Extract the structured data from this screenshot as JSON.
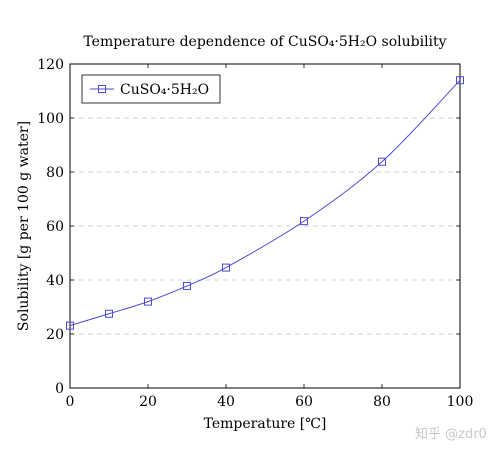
{
  "chart_data": {
    "type": "line",
    "title": "Temperature dependence of CuSO₄·5H₂O solubility",
    "xlabel": "Temperature [℃]",
    "ylabel": "Solubility [g per 100 g water]",
    "xlim": [
      0,
      100
    ],
    "ylim": [
      0,
      120
    ],
    "xticks": [
      0,
      20,
      40,
      60,
      80,
      100
    ],
    "yticks": [
      0,
      20,
      40,
      60,
      80,
      100,
      120
    ],
    "grid": "horizontal-dashed",
    "legend_position": "top-left",
    "series": [
      {
        "name": "CuSO₄·5H₂O",
        "color": "#4b4bd6",
        "marker": "square",
        "x": [
          0,
          10,
          20,
          30,
          40,
          60,
          80,
          100
        ],
        "y": [
          23.1,
          27.5,
          32.0,
          37.8,
          44.6,
          61.8,
          83.8,
          114.0
        ]
      }
    ]
  },
  "watermark": "知乎 @zdr0"
}
